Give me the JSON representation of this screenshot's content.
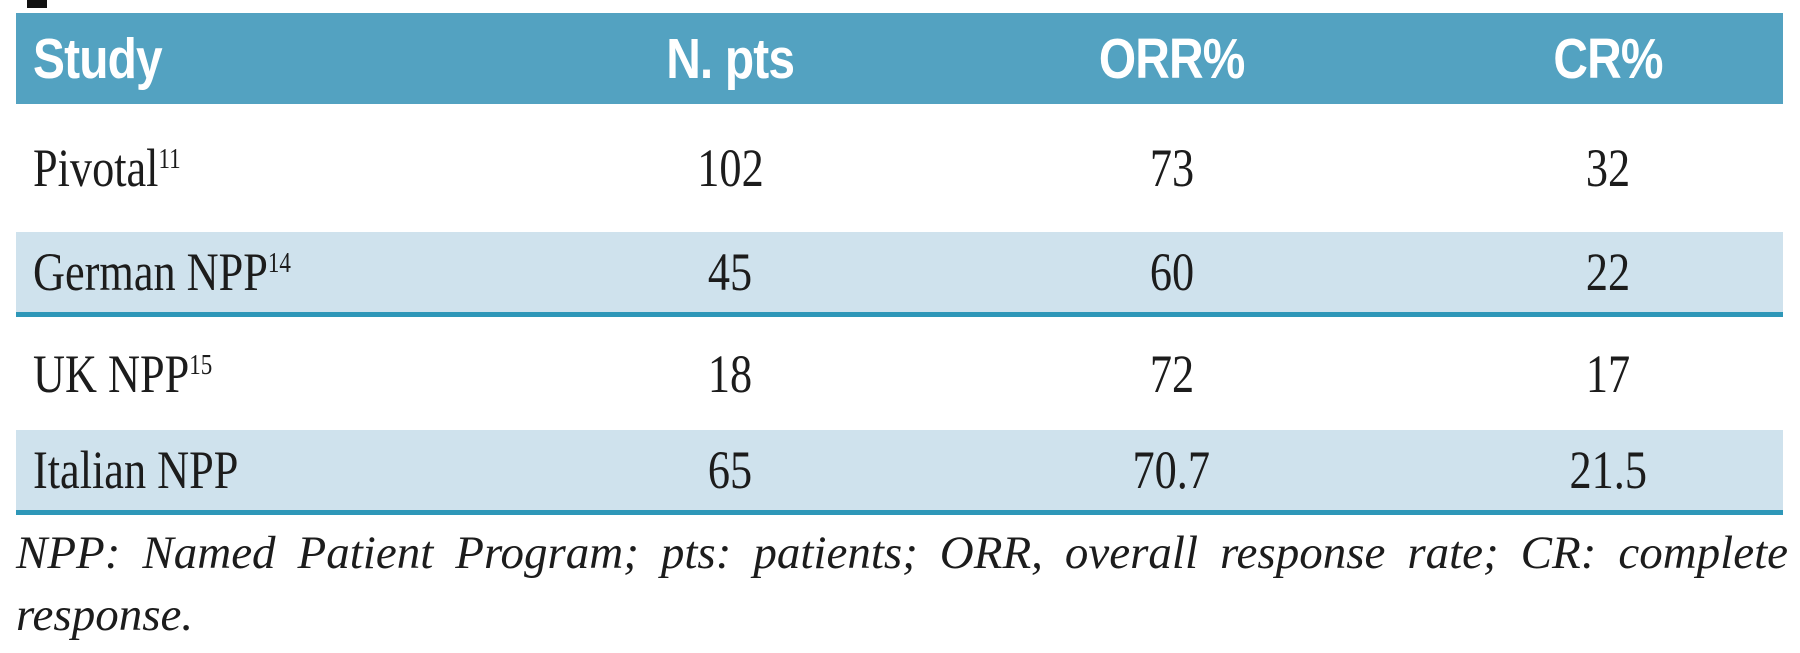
{
  "colors": {
    "header_bg": "#53a2c1",
    "header_text": "#ffffff",
    "alt_row_bg": "#cfe2ed",
    "divider_line": "#2e97b8",
    "body_text": "#1c1c1c",
    "page_bg": "#ffffff"
  },
  "table": {
    "columns": {
      "study": "Study",
      "n_pts": "N. pts",
      "orr": "ORR%",
      "cr": "CR%"
    },
    "rows": [
      {
        "study": {
          "text": "Pivotal",
          "sup": "11"
        },
        "n_pts": "102",
        "orr": "73",
        "cr": "32"
      },
      {
        "study": {
          "text": "German NPP",
          "sup": "14"
        },
        "n_pts": "45",
        "orr": "60",
        "cr": "22"
      },
      {
        "study": {
          "text": "UK NPP",
          "sup": "15"
        },
        "n_pts": "18",
        "orr": "72",
        "cr": "17"
      },
      {
        "study": {
          "text": "Italian NPP",
          "sup": ""
        },
        "n_pts": "65",
        "orr": "70.7",
        "cr": "21.5"
      }
    ]
  },
  "footnote": {
    "line1": "NPP: Named Patient Program; pts: patients; ORR, overall response rate; CR: complete",
    "line2": "response."
  }
}
